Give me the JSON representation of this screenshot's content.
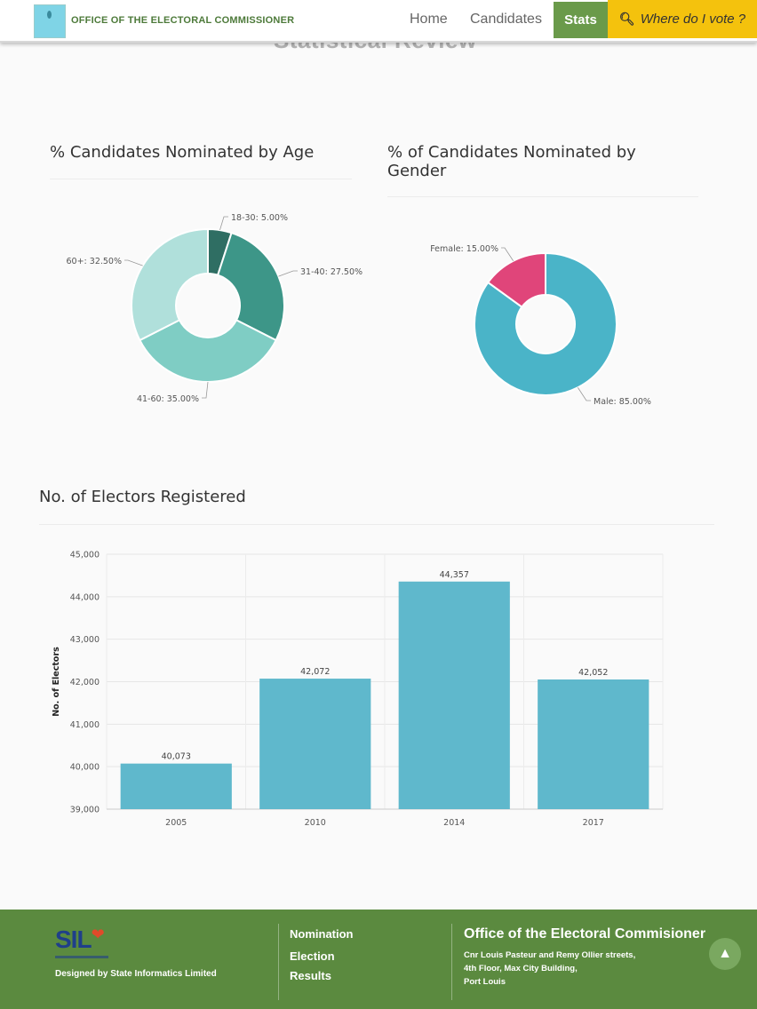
{
  "header": {
    "brand": "OFFICE OF THE ELECTORAL COMMISSIONER",
    "nav": {
      "home": "Home",
      "candidates": "Candidates",
      "stats": "Stats",
      "where_vote": "Where do I vote ?"
    },
    "page_heading": "Statistical Review"
  },
  "colors": {
    "accent_green": "#6a9a4a",
    "footer_green": "#5b8a3f",
    "vote_yellow": "#f4c20d",
    "bar_blue": "#5fb8cc"
  },
  "chart_data": [
    {
      "type": "pie",
      "title": "% Candidates Nominated by Age",
      "donut": true,
      "slices": [
        {
          "label": "18-30",
          "value": 5.0,
          "display": "18-30: 5.00%",
          "color": "#2f6e63"
        },
        {
          "label": "31-40",
          "value": 27.5,
          "display": "31-40: 27.50%",
          "color": "#3d9688"
        },
        {
          "label": "41-60",
          "value": 35.0,
          "display": "41-60: 35.00%",
          "color": "#7fcdc4"
        },
        {
          "label": "60+",
          "value": 32.5,
          "display": "60+: 32.50%",
          "color": "#b0e0db"
        }
      ]
    },
    {
      "type": "pie",
      "title": "% of Candidates Nominated by Gender",
      "donut": true,
      "slices": [
        {
          "label": "Male",
          "value": 85.0,
          "display": "Male: 85.00%",
          "color": "#4ab4c8"
        },
        {
          "label": "Female",
          "value": 15.0,
          "display": "Female: 15.00%",
          "color": "#e0457a"
        }
      ]
    },
    {
      "type": "bar",
      "title": "No. of Electors Registered",
      "categories": [
        "2005",
        "2010",
        "2014",
        "2017"
      ],
      "values": [
        40073,
        42072,
        44357,
        42052
      ],
      "value_labels": [
        "40,073",
        "42,072",
        "44,357",
        "42,052"
      ],
      "ylabel": "No. of Electors",
      "ylim": [
        39000,
        45000
      ],
      "yticks": [
        "39,000",
        "40,000",
        "41,000",
        "42,000",
        "43,000",
        "44,000",
        "45,000"
      ],
      "grid": true
    }
  ],
  "footer": {
    "logo_text": "SIL",
    "designed_by": "Designed by State Informatics Limited",
    "links": [
      "Nomination",
      "Election",
      "Results"
    ],
    "office_name": "Office of the Electoral Commisioner",
    "address_lines": [
      "Cnr Louis Pasteur and Remy Ollier streets,",
      "4th Floor, Max City Building,",
      "Port Louis"
    ]
  }
}
